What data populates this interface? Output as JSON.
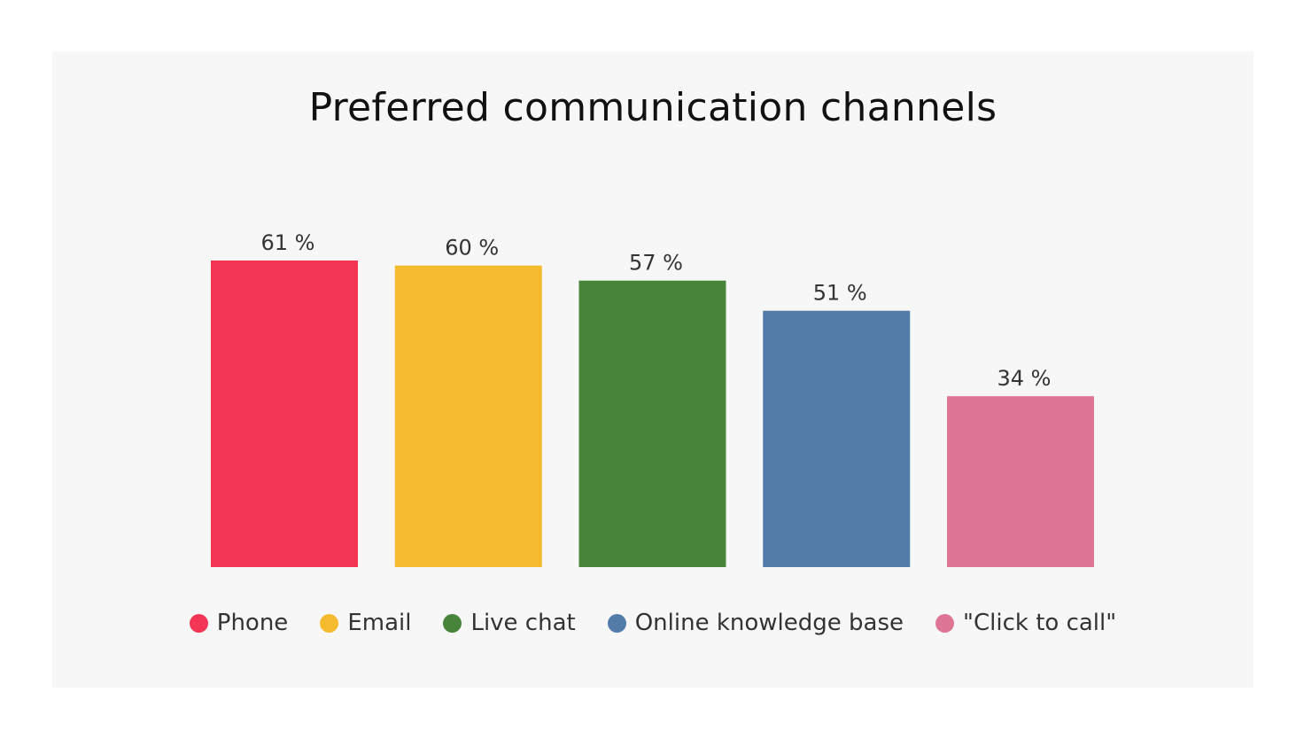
{
  "chart_data": {
    "type": "bar",
    "title": "Preferred communication channels",
    "xlabel": "",
    "ylabel": "",
    "unit": "%",
    "categories": [
      "Phone",
      "Email",
      "Live chat",
      "Online knowledge base",
      "\"Click to call\""
    ],
    "values": [
      61,
      60,
      57,
      51,
      34
    ],
    "value_labels": [
      "61 %",
      "60 %",
      "57 %",
      "51 %",
      "34 %"
    ],
    "colors": [
      "#f43655",
      "#f5bb2e",
      "#48853a",
      "#537ca8",
      "#df7595"
    ],
    "ylim": [
      0,
      61
    ],
    "grid": false,
    "legend_position": "bottom"
  }
}
